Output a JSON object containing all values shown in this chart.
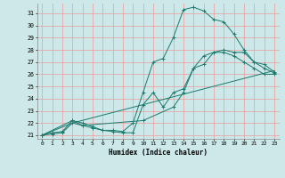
{
  "xlabel": "Humidex (Indice chaleur)",
  "bg_color": "#cce8e8",
  "grid_color": "#ee9999",
  "line_color": "#1a7a6e",
  "xlim": [
    -0.5,
    23.5
  ],
  "ylim": [
    20.7,
    31.8
  ],
  "yticks": [
    21,
    22,
    23,
    24,
    25,
    26,
    27,
    28,
    29,
    30,
    31
  ],
  "xticks": [
    0,
    1,
    2,
    3,
    4,
    5,
    6,
    7,
    8,
    9,
    10,
    11,
    12,
    13,
    14,
    15,
    16,
    17,
    18,
    19,
    20,
    21,
    22,
    23
  ],
  "series": [
    {
      "x": [
        0,
        1,
        2,
        3,
        4,
        5,
        6,
        7,
        8,
        9,
        10,
        11,
        12,
        13,
        14,
        15,
        16,
        17,
        18,
        19,
        20,
        21,
        22,
        23
      ],
      "y": [
        21,
        21.2,
        21.3,
        22.2,
        22.0,
        21.7,
        21.4,
        21.4,
        21.3,
        22.0,
        24.5,
        27.0,
        27.3,
        29.0,
        31.3,
        31.5,
        31.2,
        30.5,
        30.3,
        29.3,
        28.0,
        27.0,
        26.8,
        26.2
      ]
    },
    {
      "x": [
        0,
        1,
        2,
        3,
        4,
        5,
        6,
        7,
        8,
        9,
        10,
        11,
        12,
        13,
        14,
        15,
        16,
        17,
        18,
        19,
        20,
        21,
        22,
        23
      ],
      "y": [
        21,
        21.1,
        21.2,
        22.0,
        21.8,
        21.6,
        21.4,
        21.3,
        21.2,
        21.2,
        23.5,
        24.5,
        23.3,
        24.5,
        24.8,
        26.5,
        26.8,
        27.8,
        27.8,
        27.5,
        27.0,
        26.5,
        26.0,
        26.0
      ]
    },
    {
      "x": [
        0,
        3,
        4,
        10,
        13,
        14,
        15,
        16,
        17,
        18,
        19,
        20,
        21,
        22,
        23
      ],
      "y": [
        21,
        22.2,
        21.8,
        22.2,
        23.3,
        24.5,
        26.5,
        27.5,
        27.8,
        28.0,
        27.8,
        27.8,
        27.0,
        26.5,
        26.1
      ]
    },
    {
      "x": [
        0,
        3,
        23
      ],
      "y": [
        21,
        22.0,
        26.3
      ]
    }
  ]
}
